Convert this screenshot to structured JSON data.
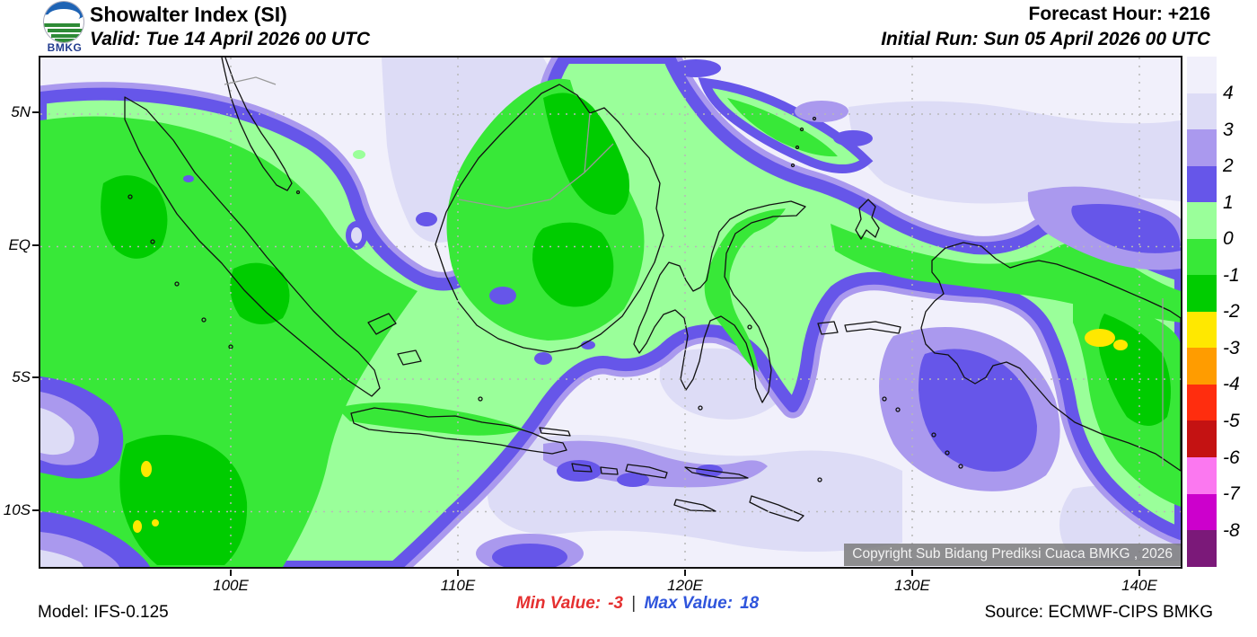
{
  "header": {
    "logo_text": "BMKG",
    "title": "Showalter Index (SI)",
    "valid": "Valid: Tue 14 April 2026 00 UTC",
    "forecast_hour": "Forecast Hour: +216",
    "initial_run": "Initial Run: Sun 05 April 2026 00 UTC"
  },
  "map": {
    "copyright": "Copyright Sub Bidang Prediksi Cuaca BMKG , 2026",
    "x_ticks": [
      "100E",
      "110E",
      "120E",
      "130E",
      "140E"
    ],
    "y_ticks": [
      "5N",
      "EQ",
      "5S",
      "10S"
    ]
  },
  "legend": {
    "labels": [
      "4",
      "3",
      "2",
      "1",
      "0",
      "-1",
      "-2",
      "-3",
      "-4",
      "-5",
      "-6",
      "-7",
      "-8"
    ],
    "colors": [
      "#F1F0FB",
      "#DDDCF6",
      "#AA99EE",
      "#6656E9",
      "#9AFF9A",
      "#38E838",
      "#00CC00",
      "#FFE800",
      "#FF9C00",
      "#FF2D0E",
      "#C41212",
      "#FB78F0",
      "#CC00CC",
      "#7B1979"
    ]
  },
  "footer": {
    "model": "Model: IFS-0.125",
    "min_label": "Min Value:",
    "min_value": "-3",
    "separator": "|",
    "max_label": "Max Value:",
    "max_value": "18",
    "source": "Source: ECMWF-CIPS BMKG",
    "min_color": "#E53030",
    "max_color": "#2F55DC"
  }
}
